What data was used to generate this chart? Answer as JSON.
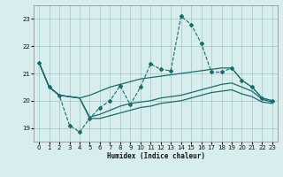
{
  "xlabel": "Humidex (Indice chaleur)",
  "background_color": "#d8eeee",
  "grid_color": "#aacccc",
  "line_color": "#1a6b6b",
  "xlim": [
    -0.5,
    23.5
  ],
  "ylim": [
    18.5,
    23.5
  ],
  "xticks": [
    0,
    1,
    2,
    3,
    4,
    5,
    6,
    7,
    8,
    9,
    10,
    11,
    12,
    13,
    14,
    15,
    16,
    17,
    18,
    19,
    20,
    21,
    22,
    23
  ],
  "yticks": [
    19,
    20,
    21,
    22,
    23
  ],
  "main_x": [
    0,
    1,
    2,
    3,
    4,
    5,
    6,
    7,
    8,
    9,
    10,
    11,
    12,
    13,
    14,
    15,
    16,
    17,
    18,
    19,
    20,
    21,
    22,
    23
  ],
  "main_y": [
    21.4,
    20.5,
    20.2,
    19.1,
    18.85,
    19.35,
    19.75,
    20.0,
    20.55,
    19.85,
    20.5,
    21.35,
    21.15,
    21.1,
    23.1,
    22.8,
    22.1,
    21.05,
    21.05,
    21.2,
    20.75,
    20.5,
    20.1,
    20.0
  ],
  "smooth1_x": [
    0,
    1,
    2,
    3,
    4,
    5,
    6,
    7,
    8,
    9,
    10,
    11,
    12,
    13,
    14,
    15,
    16,
    17,
    18,
    19,
    20,
    21,
    22,
    23
  ],
  "smooth1_y": [
    21.4,
    20.5,
    20.2,
    20.15,
    20.1,
    20.2,
    20.35,
    20.5,
    20.6,
    20.7,
    20.8,
    20.85,
    20.9,
    20.95,
    21.0,
    21.05,
    21.1,
    21.15,
    21.2,
    21.2,
    20.75,
    20.5,
    20.1,
    20.0
  ],
  "smooth2_x": [
    0,
    1,
    2,
    3,
    4,
    5,
    6,
    7,
    8,
    9,
    10,
    11,
    12,
    13,
    14,
    15,
    16,
    17,
    18,
    19,
    20,
    21,
    22,
    23
  ],
  "smooth2_y": [
    21.4,
    20.5,
    20.2,
    20.15,
    20.1,
    19.4,
    19.5,
    19.65,
    19.8,
    19.9,
    19.95,
    20.0,
    20.1,
    20.15,
    20.2,
    20.3,
    20.4,
    20.5,
    20.6,
    20.65,
    20.5,
    20.35,
    20.05,
    19.95
  ],
  "smooth3_x": [
    0,
    1,
    2,
    3,
    4,
    5,
    6,
    7,
    8,
    9,
    10,
    11,
    12,
    13,
    14,
    15,
    16,
    17,
    18,
    19,
    20,
    21,
    22,
    23
  ],
  "smooth3_y": [
    21.4,
    20.5,
    20.2,
    20.15,
    20.1,
    19.35,
    19.35,
    19.45,
    19.55,
    19.65,
    19.75,
    19.8,
    19.9,
    19.95,
    20.0,
    20.1,
    20.2,
    20.3,
    20.35,
    20.4,
    20.25,
    20.15,
    19.95,
    19.9
  ]
}
